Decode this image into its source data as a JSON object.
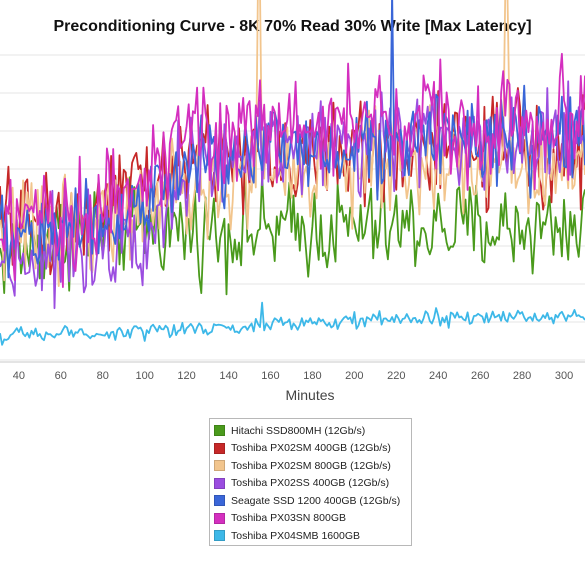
{
  "chart_data": {
    "type": "line",
    "title": "Preconditioning Curve - 8K 70% Read 30% Write [Max Latency]",
    "xlabel": "Minutes",
    "ylabel": "",
    "x_ticks": [
      40,
      60,
      80,
      100,
      120,
      140,
      160,
      180,
      200,
      220,
      240,
      260,
      280,
      300
    ],
    "xlim": [
      31,
      310
    ],
    "grid": "horizontal",
    "legend_position": "bottom-center",
    "series": [
      {
        "name": "Hitachi SSD800MH (12Gb/s)",
        "color": "#4a9a1c",
        "profile": [
          [
            31,
            0.34
          ],
          [
            60,
            0.4
          ],
          [
            100,
            0.44
          ],
          [
            120,
            0.42
          ],
          [
            160,
            0.42
          ],
          [
            200,
            0.43
          ],
          [
            240,
            0.43
          ],
          [
            280,
            0.43
          ],
          [
            310,
            0.44
          ]
        ],
        "noise": 0.075,
        "spikes": []
      },
      {
        "name": "Toshiba PX02SM 400GB (12Gb/s)",
        "color": "#c62828",
        "profile": [
          [
            31,
            0.44
          ],
          [
            60,
            0.46
          ],
          [
            100,
            0.56
          ],
          [
            120,
            0.66
          ],
          [
            160,
            0.67
          ],
          [
            200,
            0.67
          ],
          [
            240,
            0.68
          ],
          [
            280,
            0.68
          ],
          [
            310,
            0.68
          ]
        ],
        "noise": 0.085,
        "spikes": []
      },
      {
        "name": "Toshiba PX02SM 800GB (12Gb/s)",
        "color": "#f2c58d",
        "profile": [
          [
            31,
            0.42
          ],
          [
            60,
            0.44
          ],
          [
            100,
            0.48
          ],
          [
            120,
            0.54
          ],
          [
            160,
            0.6
          ],
          [
            200,
            0.63
          ],
          [
            240,
            0.64
          ],
          [
            280,
            0.64
          ],
          [
            310,
            0.64
          ]
        ],
        "noise": 0.08,
        "spikes": [
          [
            154,
            1.2
          ],
          [
            155,
            1.2
          ],
          [
            272,
            1.2
          ],
          [
            273,
            1.2
          ]
        ]
      },
      {
        "name": "Toshiba PX02SS 400GB (12Gb/s)",
        "color": "#9b4de0",
        "profile": [
          [
            31,
            0.33
          ],
          [
            60,
            0.36
          ],
          [
            100,
            0.44
          ],
          [
            120,
            0.6
          ],
          [
            160,
            0.7
          ],
          [
            200,
            0.7
          ],
          [
            240,
            0.72
          ],
          [
            280,
            0.73
          ],
          [
            310,
            0.73
          ]
        ],
        "noise": 0.08,
        "spikes": []
      },
      {
        "name": "Seagate SSD 1200 400GB (12Gb/s)",
        "color": "#3a66d8",
        "profile": [
          [
            31,
            0.4
          ],
          [
            60,
            0.42
          ],
          [
            100,
            0.5
          ],
          [
            120,
            0.62
          ],
          [
            160,
            0.68
          ],
          [
            200,
            0.7
          ],
          [
            240,
            0.71
          ],
          [
            280,
            0.71
          ],
          [
            310,
            0.71
          ]
        ],
        "noise": 0.07,
        "spikes": [
          [
            218,
            1.2
          ]
        ]
      },
      {
        "name": "Toshiba PX03SN 800GB",
        "color": "#d42fbf",
        "profile": [
          [
            31,
            0.4
          ],
          [
            60,
            0.44
          ],
          [
            100,
            0.6
          ],
          [
            120,
            0.73
          ],
          [
            160,
            0.76
          ],
          [
            200,
            0.76
          ],
          [
            240,
            0.77
          ],
          [
            280,
            0.77
          ],
          [
            310,
            0.78
          ]
        ],
        "noise": 0.09,
        "spikes": []
      },
      {
        "name": "Toshiba PX04SMB 1600GB",
        "color": "#3db8e8",
        "profile": [
          [
            31,
            0.08
          ],
          [
            60,
            0.09
          ],
          [
            100,
            0.1
          ],
          [
            140,
            0.11
          ],
          [
            160,
            0.12
          ],
          [
            200,
            0.13
          ],
          [
            240,
            0.14
          ],
          [
            280,
            0.145
          ],
          [
            310,
            0.15
          ]
        ],
        "noise": 0.012,
        "spikes": [
          [
            156,
            0.19
          ]
        ]
      }
    ]
  }
}
